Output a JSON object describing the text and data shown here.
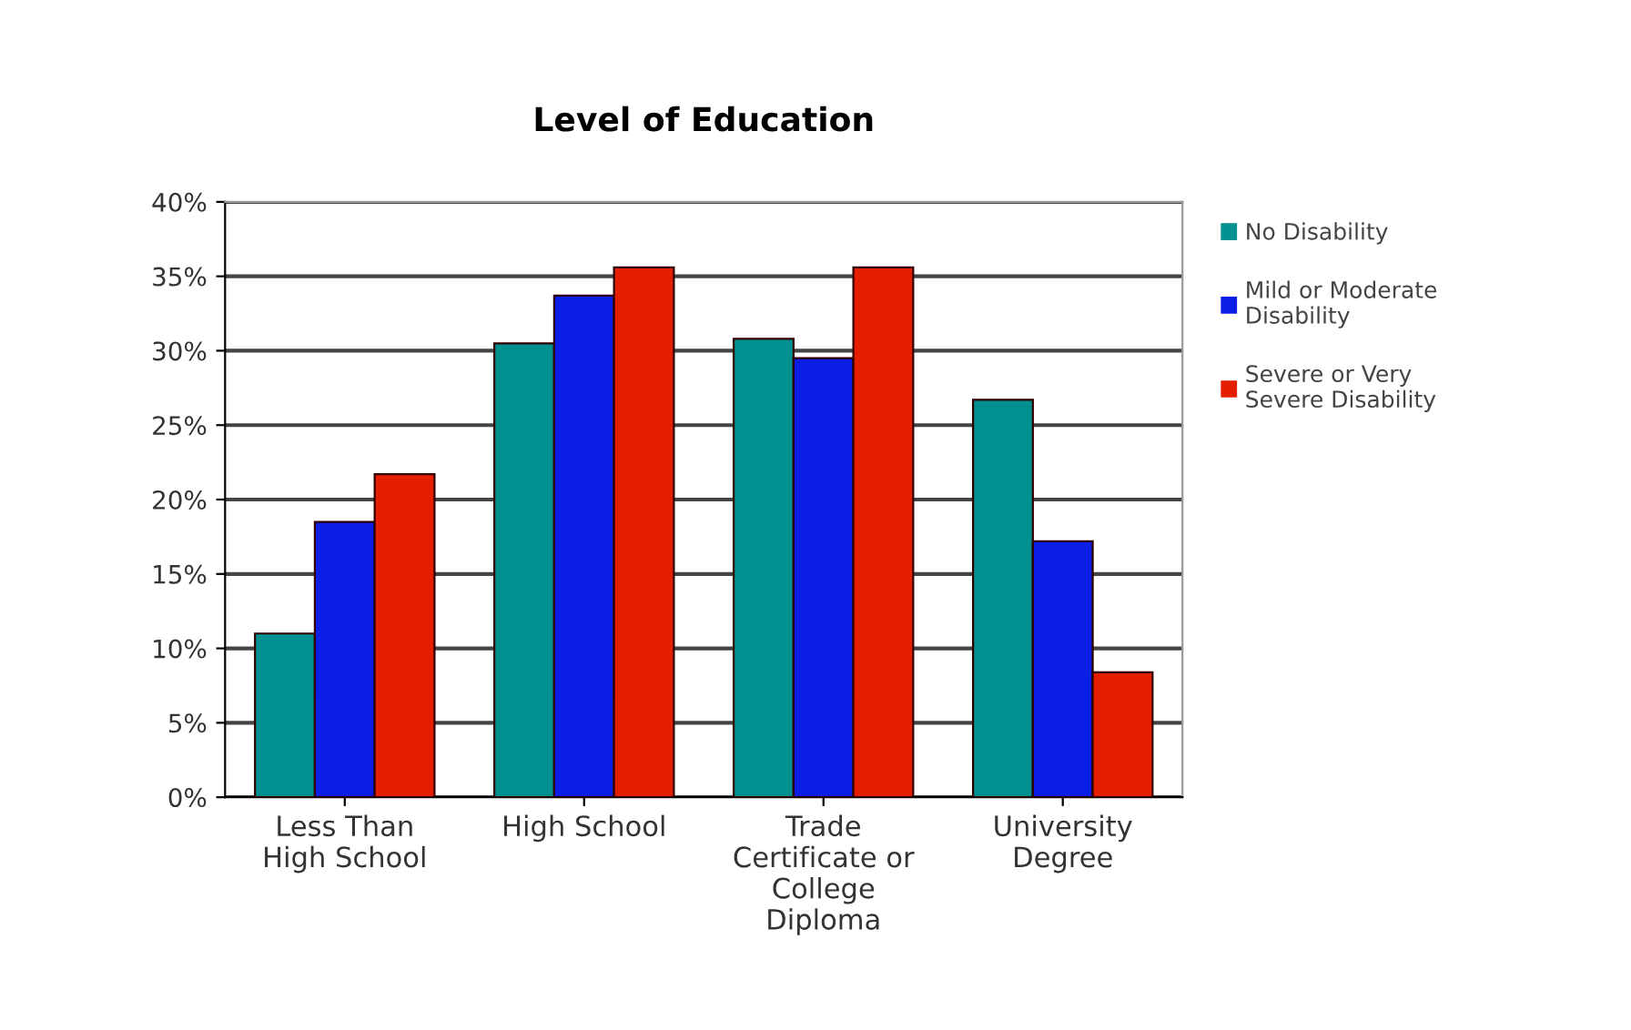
{
  "chart_data": {
    "type": "bar",
    "title": "Level of Education",
    "categories": [
      "Less Than\nHigh School",
      "High School",
      "Trade\nCertificate or\nCollege\nDiploma",
      "University\nDegree"
    ],
    "series": [
      {
        "name": "No Disability",
        "color": "#009090",
        "values": [
          11.0,
          30.5,
          30.8,
          26.7
        ]
      },
      {
        "name": "Mild or Moderate\nDisability",
        "color": "#0a1ee6",
        "values": [
          18.5,
          33.7,
          29.5,
          17.2
        ]
      },
      {
        "name": "Severe or Very\nSevere Disability",
        "color": "#e61e00",
        "values": [
          21.7,
          35.6,
          35.6,
          8.4
        ]
      }
    ],
    "ylim": [
      0,
      40
    ],
    "yticks": [
      {
        "value": 0,
        "label": "0%"
      },
      {
        "value": 5,
        "label": "5%"
      },
      {
        "value": 10,
        "label": "10%"
      },
      {
        "value": 15,
        "label": "15%"
      },
      {
        "value": 20,
        "label": "20%"
      },
      {
        "value": 25,
        "label": "25%"
      },
      {
        "value": 30,
        "label": "30%"
      },
      {
        "value": 35,
        "label": "35%"
      },
      {
        "value": 40,
        "label": "40%"
      }
    ],
    "grid": "y",
    "legend": "right"
  }
}
